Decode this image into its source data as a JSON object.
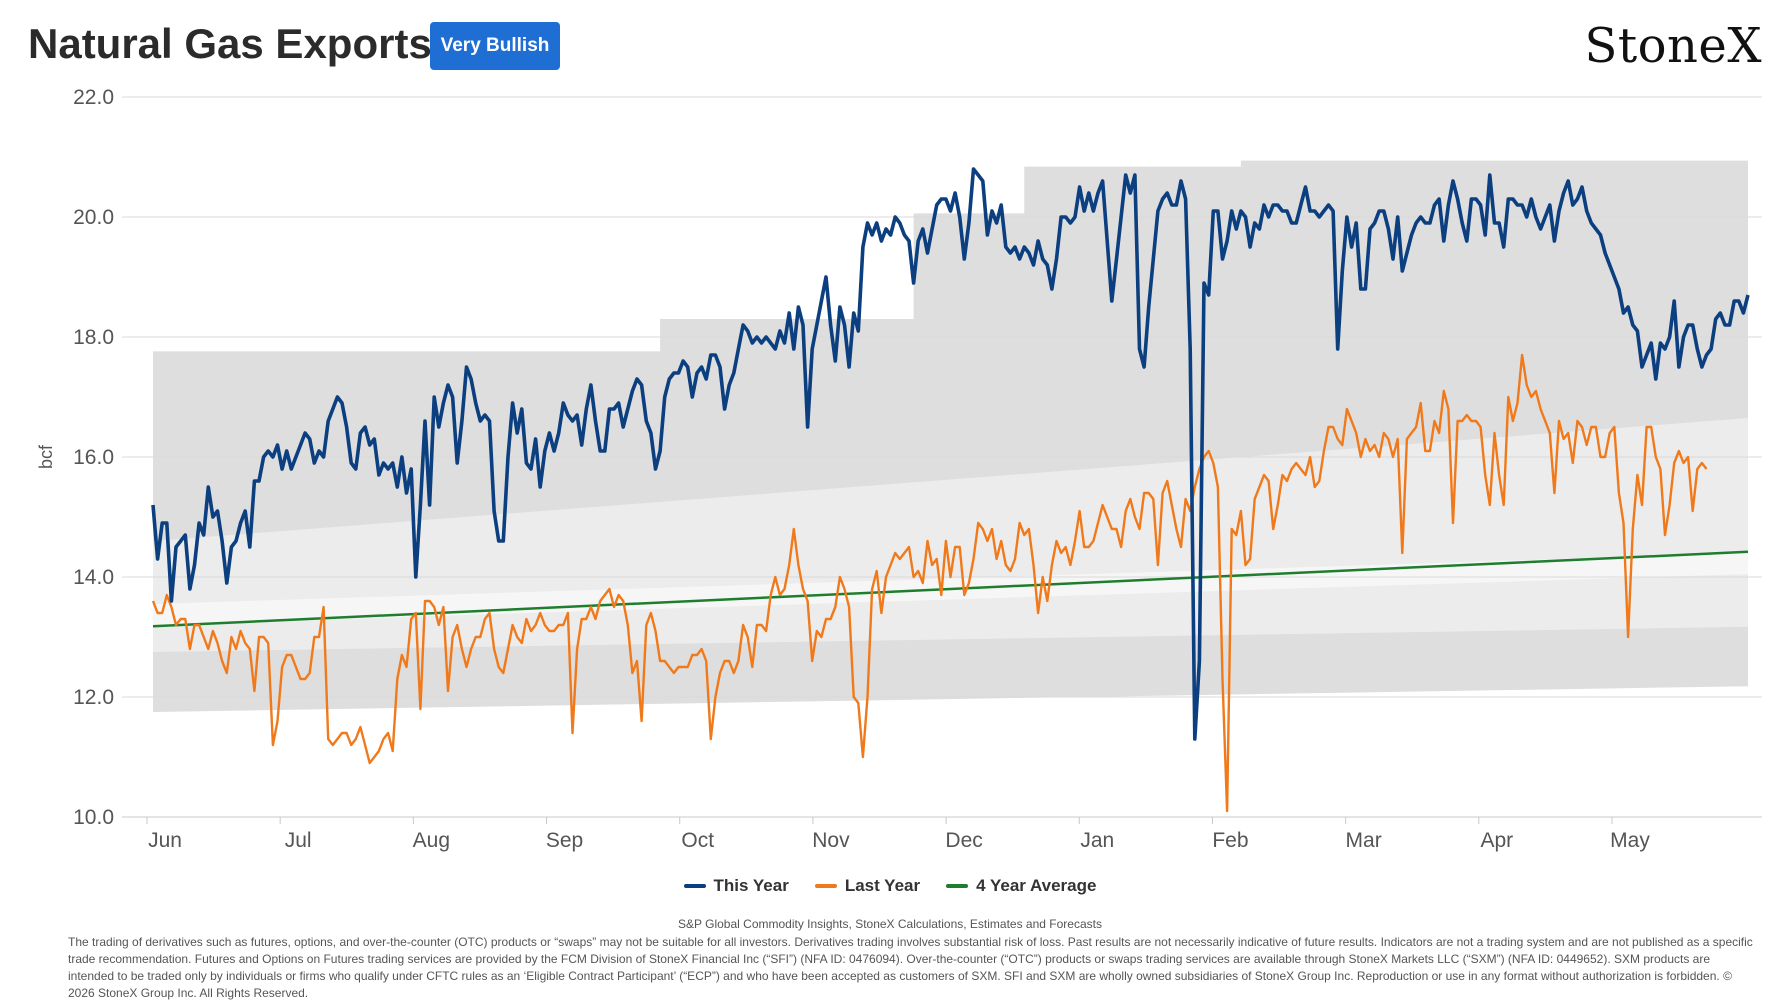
{
  "header": {
    "title": "Natural Gas Exports",
    "badge": "Very Bullish",
    "logo": "StoneX"
  },
  "colors": {
    "this_year": "#0b3f7f",
    "last_year": "#f07a1b",
    "avg": "#1f7e2e",
    "badge": "#1f6ed4",
    "band_outer": "#dedede",
    "band_mid": "#ececec",
    "band_inner": "#f6f6f6"
  },
  "chart_data": {
    "type": "line",
    "ylabel": "bcf",
    "ylim": [
      10.0,
      22.0
    ],
    "yticks": [
      "10.0",
      "12.0",
      "14.0",
      "16.0",
      "18.0",
      "20.0",
      "22.0"
    ],
    "xlabels": [
      "Jun",
      "Jul",
      "Aug",
      "Sep",
      "Oct",
      "Nov",
      "Dec",
      "Jan",
      "Feb",
      "Mar",
      "Apr",
      "May"
    ],
    "grid": true,
    "legend_position": "bottom",
    "series": [
      {
        "name": "This Year",
        "key": "this_year",
        "values": [
          15.2,
          14.3,
          14.9,
          14.9,
          13.6,
          14.5,
          14.6,
          14.7,
          13.8,
          14.2,
          14.9,
          14.7,
          15.5,
          15.0,
          15.1,
          14.6,
          13.9,
          14.5,
          14.6,
          14.9,
          15.1,
          14.5,
          15.6,
          15.6,
          16.0,
          16.1,
          16.0,
          16.2,
          15.8,
          16.1,
          15.8,
          16.0,
          16.2,
          16.4,
          16.3,
          15.9,
          16.1,
          16.0,
          16.6,
          16.8,
          17.0,
          16.9,
          16.5,
          15.9,
          15.8,
          16.4,
          16.5,
          16.2,
          16.3,
          15.7,
          15.9,
          15.8,
          15.9,
          15.5,
          16.0,
          15.4,
          15.8,
          14.0,
          15.2,
          16.6,
          15.2,
          17.0,
          16.5,
          16.9,
          17.2,
          17.0,
          15.9,
          16.6,
          17.5,
          17.3,
          16.9,
          16.6,
          16.7,
          16.6,
          15.1,
          14.6,
          14.6,
          16.0,
          16.9,
          16.4,
          16.8,
          15.9,
          15.8,
          16.3,
          15.5,
          16.1,
          16.4,
          16.1,
          16.4,
          16.9,
          16.7,
          16.6,
          16.7,
          16.2,
          16.8,
          17.2,
          16.6,
          16.1,
          16.1,
          16.8,
          16.8,
          16.9,
          16.5,
          16.8,
          17.1,
          17.3,
          17.2,
          16.6,
          16.4,
          15.8,
          16.1,
          17.0,
          17.3,
          17.4,
          17.4,
          17.6,
          17.5,
          17.0,
          17.4,
          17.5,
          17.3,
          17.7,
          17.7,
          17.5,
          16.8,
          17.2,
          17.4,
          17.8,
          18.2,
          18.1,
          17.9,
          18.0,
          17.9,
          18.0,
          17.9,
          17.8,
          18.1,
          17.9,
          18.4,
          17.8,
          18.5,
          18.2,
          16.5,
          17.8,
          18.2,
          18.6,
          19.0,
          18.2,
          17.6,
          18.5,
          18.2,
          17.5,
          18.4,
          18.1,
          19.5,
          19.9,
          19.7,
          19.9,
          19.6,
          19.8,
          19.7,
          20.0,
          19.9,
          19.7,
          19.6,
          18.9,
          19.6,
          19.8,
          19.4,
          19.8,
          20.2,
          20.3,
          20.3,
          20.1,
          20.4,
          20.0,
          19.3,
          19.9,
          20.8,
          20.7,
          20.6,
          19.7,
          20.1,
          19.9,
          20.2,
          19.5,
          19.4,
          19.5,
          19.3,
          19.5,
          19.4,
          19.2,
          19.6,
          19.3,
          19.2,
          18.8,
          19.3,
          20.0,
          20.0,
          19.9,
          20.0,
          20.5,
          20.1,
          20.4,
          20.1,
          20.4,
          20.6,
          19.6,
          18.6,
          19.3,
          20.0,
          20.7,
          20.4,
          20.7,
          17.8,
          17.5,
          18.5,
          19.3,
          20.1,
          20.3,
          20.4,
          20.2,
          20.2,
          20.6,
          20.3,
          17.8,
          11.3,
          12.6,
          18.9,
          18.7,
          20.1,
          20.1,
          19.3,
          19.6,
          20.1,
          19.8,
          20.1,
          20.0,
          19.5,
          19.9,
          19.8,
          20.2,
          20.0,
          20.2,
          20.2,
          20.1,
          20.1,
          19.9,
          19.9,
          20.2,
          20.5,
          20.1,
          20.1,
          20.0,
          20.1,
          20.2,
          20.1,
          17.8,
          19.1,
          20.0,
          19.5,
          19.9,
          18.8,
          18.8,
          19.8,
          19.9,
          20.1,
          20.1,
          19.8,
          19.3,
          20.0,
          19.1,
          19.4,
          19.7,
          19.9,
          20.0,
          19.9,
          19.9,
          20.2,
          20.3,
          19.6,
          20.2,
          20.6,
          20.3,
          19.9,
          19.6,
          20.3,
          20.3,
          20.2,
          19.7,
          20.7,
          19.9,
          19.9,
          19.5,
          20.3,
          20.3,
          20.2,
          20.2,
          20.0,
          20.3,
          20.0,
          19.8,
          20.0,
          20.2,
          19.6,
          20.1,
          20.4,
          20.6,
          20.2,
          20.3,
          20.5,
          20.1,
          19.9,
          19.8,
          19.7,
          19.4,
          19.2,
          19.0,
          18.8,
          18.4,
          18.5,
          18.2,
          18.1,
          17.5,
          17.7,
          17.9,
          17.3,
          17.9,
          17.8,
          18.0,
          18.6,
          17.5,
          18.0,
          18.2,
          18.2,
          17.8,
          17.5,
          17.7,
          17.8,
          18.3,
          18.4,
          18.2,
          18.2,
          18.6,
          18.6,
          18.4,
          18.7
        ]
      },
      {
        "name": "Last Year",
        "key": "last_year",
        "values": [
          13.6,
          13.4,
          13.4,
          13.7,
          13.5,
          13.2,
          13.3,
          13.3,
          12.8,
          13.2,
          13.2,
          13.0,
          12.8,
          13.1,
          12.9,
          12.6,
          12.4,
          13.0,
          12.8,
          13.1,
          12.9,
          12.8,
          12.1,
          13.0,
          13.0,
          12.9,
          11.2,
          11.6,
          12.5,
          12.7,
          12.7,
          12.5,
          12.3,
          12.3,
          12.4,
          13.0,
          13.0,
          13.5,
          11.3,
          11.2,
          11.3,
          11.4,
          11.4,
          11.2,
          11.3,
          11.5,
          11.2,
          10.9,
          11.0,
          11.1,
          11.3,
          11.4,
          11.1,
          12.3,
          12.7,
          12.5,
          13.3,
          13.4,
          11.8,
          13.6,
          13.6,
          13.5,
          13.2,
          13.5,
          12.1,
          13.0,
          13.2,
          12.8,
          12.5,
          12.8,
          13.0,
          13.0,
          13.3,
          13.4,
          12.8,
          12.5,
          12.4,
          12.8,
          13.2,
          13.0,
          12.9,
          13.3,
          13.1,
          13.2,
          13.4,
          13.2,
          13.1,
          13.1,
          13.2,
          13.2,
          13.4,
          11.4,
          12.8,
          13.3,
          13.3,
          13.5,
          13.3,
          13.6,
          13.7,
          13.8,
          13.5,
          13.7,
          13.6,
          13.2,
          12.4,
          12.6,
          11.6,
          13.2,
          13.4,
          13.1,
          12.6,
          12.6,
          12.5,
          12.4,
          12.5,
          12.5,
          12.5,
          12.7,
          12.7,
          12.8,
          12.6,
          11.3,
          12.0,
          12.4,
          12.6,
          12.6,
          12.4,
          12.6,
          13.2,
          13.0,
          12.5,
          13.2,
          13.2,
          13.1,
          13.7,
          14.0,
          13.7,
          13.8,
          14.2,
          14.8,
          14.2,
          13.8,
          13.6,
          12.6,
          13.1,
          13.0,
          13.3,
          13.3,
          13.5,
          14.0,
          13.8,
          13.5,
          12.0,
          11.9,
          11.0,
          12.0,
          13.8,
          14.1,
          13.4,
          14.0,
          14.2,
          14.4,
          14.3,
          14.4,
          14.5,
          14.0,
          14.1,
          13.9,
          14.6,
          14.2,
          14.3,
          13.7,
          14.6,
          14.0,
          14.5,
          14.5,
          13.7,
          13.9,
          14.3,
          14.9,
          14.8,
          14.6,
          14.8,
          14.3,
          14.6,
          14.2,
          14.1,
          14.3,
          14.9,
          14.7,
          14.8,
          14.2,
          13.4,
          14.0,
          13.6,
          14.2,
          14.6,
          14.4,
          14.5,
          14.2,
          14.6,
          15.1,
          14.5,
          14.5,
          14.6,
          14.9,
          15.2,
          15.0,
          14.8,
          14.8,
          14.5,
          15.1,
          15.3,
          15.0,
          14.8,
          15.4,
          15.4,
          15.3,
          14.2,
          15.4,
          15.6,
          15.2,
          14.8,
          14.5,
          15.3,
          15.1,
          15.5,
          15.8,
          16.0,
          16.1,
          15.9,
          15.5,
          12.3,
          10.1,
          14.8,
          14.7,
          15.1,
          14.2,
          14.3,
          15.3,
          15.5,
          15.7,
          15.6,
          14.8,
          15.2,
          15.7,
          15.6,
          15.8,
          15.9,
          15.8,
          15.7,
          16.0,
          15.5,
          15.6,
          16.1,
          16.5,
          16.5,
          16.3,
          16.2,
          16.8,
          16.6,
          16.4,
          16.0,
          16.3,
          16.1,
          16.2,
          16.0,
          16.4,
          16.3,
          16.0,
          16.3,
          14.4,
          16.3,
          16.4,
          16.5,
          16.9,
          16.1,
          16.1,
          16.6,
          16.4,
          17.1,
          16.8,
          14.9,
          16.6,
          16.6,
          16.7,
          16.6,
          16.6,
          16.5,
          15.7,
          15.2,
          16.4,
          15.7,
          15.2,
          17.0,
          16.6,
          16.9,
          17.7,
          17.2,
          17.0,
          17.1,
          16.8,
          16.6,
          16.4,
          15.4,
          16.6,
          16.3,
          16.4,
          15.9,
          16.6,
          16.5,
          16.2,
          16.5,
          16.5,
          16.0,
          16.0,
          16.4,
          16.5,
          15.4,
          14.9,
          13.0,
          14.8,
          15.7,
          15.2,
          16.5,
          16.5,
          16.0,
          15.8,
          14.7,
          15.2,
          15.9,
          16.1,
          15.9,
          16.0,
          15.1,
          15.8,
          15.9,
          15.8
        ]
      },
      {
        "name": "4 Year Average",
        "key": "avg",
        "start": 13.18,
        "end": 14.42
      }
    ],
    "bands": [
      {
        "key": "band_outer",
        "lower": [
          11.75,
          12.18
        ],
        "upper_segments": [
          [
            0,
            17.76
          ],
          [
            110,
            18.3
          ],
          [
            165,
            20.06
          ],
          [
            189,
            20.84
          ],
          [
            236,
            20.94
          ]
        ]
      },
      {
        "key": "band_mid",
        "lower": [
          12.75,
          13.17
        ],
        "upper": [
          14.6,
          16.65
        ]
      },
      {
        "key": "band_inner",
        "lower": [
          13.2,
          14.05
        ],
        "upper": [
          13.55,
          14.4
        ]
      }
    ]
  },
  "footer": {
    "source": "S&P Global Commodity Insights, StoneX Calculations, Estimates and Forecasts",
    "disclaimer": "The trading of derivatives such as futures, options, and over-the-counter (OTC) products or “swaps” may not be suitable for all investors. Derivatives trading involves substantial risk of loss. Past results are not necessarily indicative of future results. Indicators are not a trading system and are not published as a specific trade recommendation. Futures and Options on Futures trading services are provided by the FCM Division of StoneX Financial Inc (“SFI”) (NFA ID: 0476094). Over-the-counter (“OTC”) products or swaps trading services are available through StoneX Markets LLC (“SXM”) (NFA ID: 0449652). SXM products are intended to be traded only by individuals or firms who qualify under CFTC rules as an ‘Eligible Contract Participant’ (“ECP”) and who have been accepted as customers of SXM. SFI and SXM are wholly owned subsidiaries of StoneX Group Inc. Reproduction or use in any format without authorization is forbidden. © 2026 StoneX Group Inc. All Rights Reserved."
  }
}
